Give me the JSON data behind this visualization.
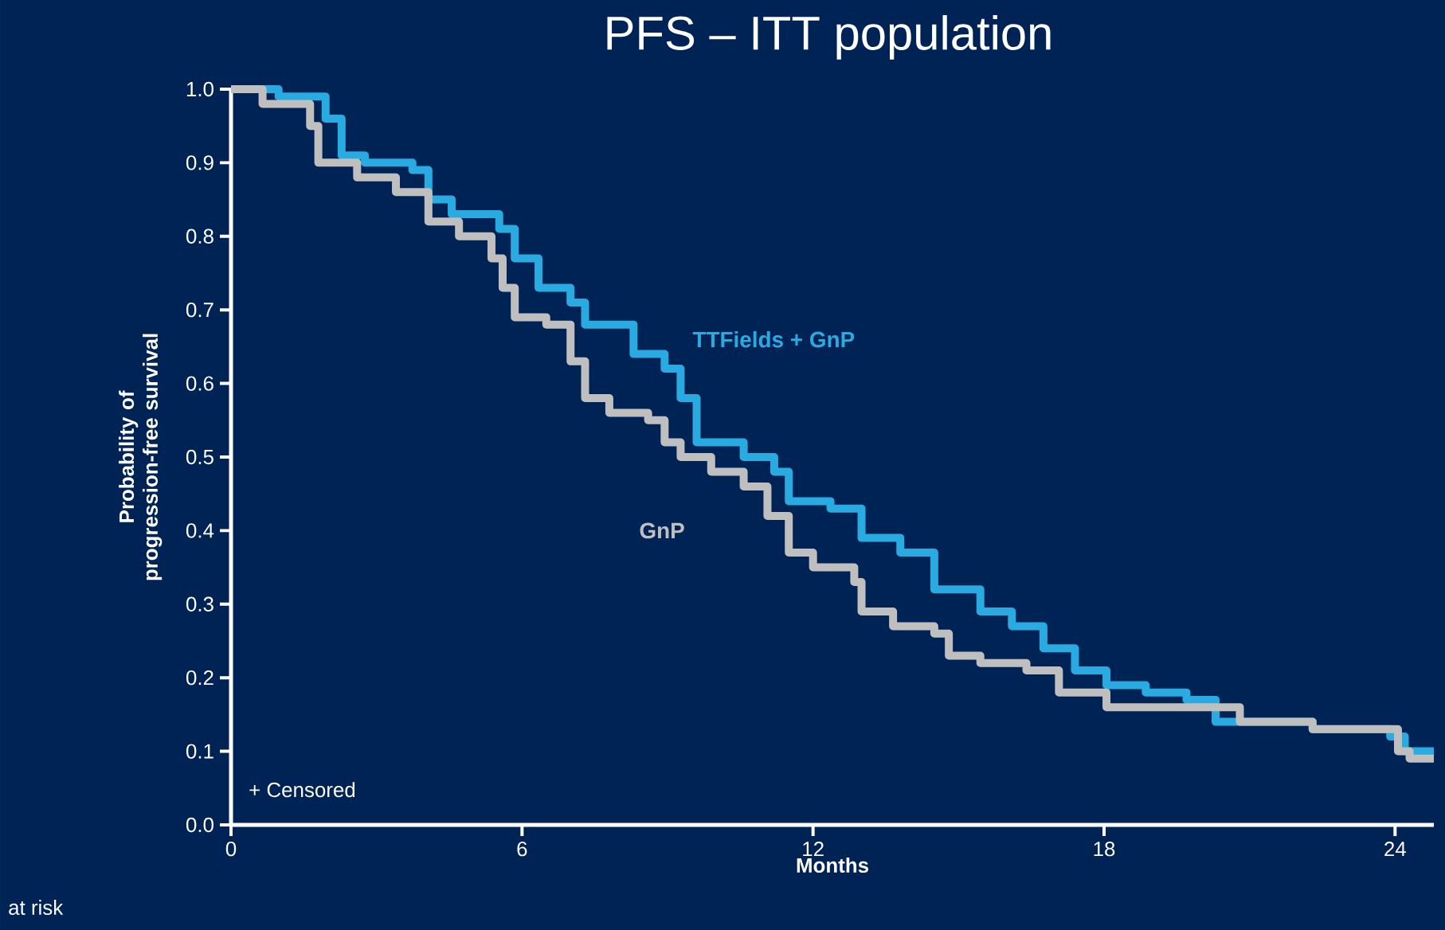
{
  "chart_data": {
    "type": "step",
    "title": "PFS – ITT population",
    "xlabel": "Months",
    "ylabel": "Probability of progression-free survival",
    "annotations": [
      "+ Censored",
      "at risk"
    ],
    "xlim": [
      0,
      24.8
    ],
    "xticks": [
      0,
      6,
      12,
      18,
      24
    ],
    "ylim": [
      0,
      1.0
    ],
    "yticks": [
      {
        "value": 0,
        "label": "0.0"
      },
      {
        "value": 0.1,
        "label": "0.1"
      },
      {
        "value": 0.2,
        "label": "0.2"
      },
      {
        "value": 0.3,
        "label": "0.3"
      },
      {
        "value": 0.4,
        "label": "0.4"
      },
      {
        "value": 0.5,
        "label": "0.5"
      },
      {
        "value": 0.6,
        "label": "0.6"
      },
      {
        "value": 0.7,
        "label": "0.7"
      },
      {
        "value": 0.8,
        "label": "0.8"
      },
      {
        "value": 0.9,
        "label": "0.9"
      },
      {
        "value": 1.0,
        "label": "1.0"
      }
    ],
    "legend": false,
    "marker": "none",
    "line_style": "solid",
    "series": [
      {
        "name": "TTFields + GnP",
        "color": "#29abe2",
        "x": [
          0,
          0.98,
          1.95,
          2.28,
          2.76,
          3.74,
          4.07,
          4.55,
          5.53,
          5.85,
          6.34,
          7.0,
          7.3,
          8.3,
          8.94,
          9.27,
          9.6,
          10.57,
          11.2,
          11.5,
          12.36,
          13.0,
          13.8,
          14.5,
          15.45,
          16.1,
          16.75,
          17.4,
          18.05,
          18.86,
          19.7,
          20.3,
          22.3,
          23.9,
          24.2,
          24.8
        ],
        "values": [
          1.0,
          0.99,
          0.96,
          0.91,
          0.9,
          0.89,
          0.85,
          0.83,
          0.81,
          0.77,
          0.73,
          0.71,
          0.68,
          0.64,
          0.62,
          0.58,
          0.52,
          0.5,
          0.48,
          0.44,
          0.43,
          0.39,
          0.37,
          0.32,
          0.29,
          0.27,
          0.24,
          0.21,
          0.19,
          0.18,
          0.17,
          0.14,
          0.13,
          0.12,
          0.1,
          0.1
        ]
      },
      {
        "name": "GnP",
        "color": "#bfbfbf",
        "x": [
          0,
          0.65,
          1.63,
          1.8,
          2.6,
          3.4,
          4.07,
          4.7,
          5.37,
          5.6,
          5.85,
          6.5,
          7.0,
          7.3,
          7.8,
          8.6,
          8.94,
          9.27,
          9.9,
          10.57,
          11.06,
          11.5,
          12.0,
          12.85,
          13.0,
          13.65,
          14.5,
          14.8,
          15.45,
          16.4,
          17.07,
          18.05,
          20.3,
          20.8,
          22.3,
          24.06,
          24.3,
          24.8
        ],
        "values": [
          1.0,
          0.98,
          0.95,
          0.9,
          0.88,
          0.86,
          0.82,
          0.8,
          0.77,
          0.73,
          0.69,
          0.68,
          0.63,
          0.58,
          0.56,
          0.55,
          0.52,
          0.5,
          0.48,
          0.46,
          0.42,
          0.37,
          0.35,
          0.33,
          0.29,
          0.27,
          0.26,
          0.23,
          0.22,
          0.21,
          0.18,
          0.16,
          0.16,
          0.14,
          0.13,
          0.1,
          0.09,
          0.09
        ]
      }
    ]
  }
}
